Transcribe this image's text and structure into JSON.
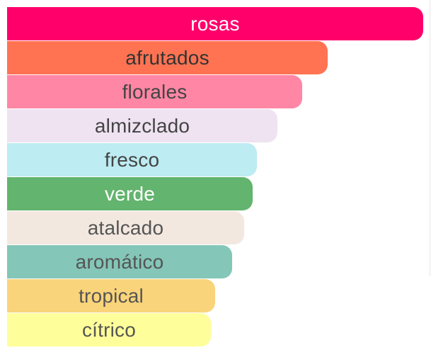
{
  "chart_data": {
    "type": "bar",
    "orientation": "horizontal",
    "categories": [
      "rosas",
      "afrutados",
      "florales",
      "almizclado",
      "fresco",
      "verde",
      "atalcado",
      "aromático",
      "tropical",
      "cítrico"
    ],
    "values": [
      100,
      77,
      71,
      65,
      60,
      59,
      57,
      54,
      50,
      49
    ],
    "colors": [
      "#ff006b",
      "#ff7352",
      "#ff87a5",
      "#efe3f2",
      "#bdecf2",
      "#63b46e",
      "#f3e8e0",
      "#84c6b8",
      "#fad47a",
      "#feff9a"
    ],
    "label_colors": [
      "#ffffff",
      "#333333",
      "#444444",
      "#444444",
      "#444444",
      "#ffffff",
      "#555555",
      "#555555",
      "#555555",
      "#555555"
    ],
    "xlim": [
      0,
      100
    ],
    "grid": false,
    "legend": "none"
  }
}
